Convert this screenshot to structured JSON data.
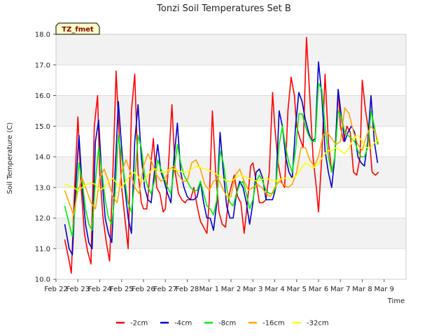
{
  "chart_data": {
    "type": "line",
    "title": "Tonzi Soil Temperatures Set B",
    "xlabel": "Time",
    "ylabel": "Soil Temperature (C)",
    "ylim": [
      10.0,
      18.0
    ],
    "xlim": [
      0,
      16
    ],
    "y_ticks": [
      "10.0",
      "11.0",
      "12.0",
      "13.0",
      "14.0",
      "15.0",
      "16.0",
      "17.0",
      "18.0"
    ],
    "x_ticks": [
      "Feb 22",
      "Feb 23",
      "Feb 24",
      "Feb 25",
      "Feb 26",
      "Feb 27",
      "Feb 28",
      "Mar 1",
      "Mar 2",
      "Mar 3",
      "Mar 4",
      "Mar 5",
      "Mar 6",
      "Mar 7",
      "Mar 8",
      "Mar 9"
    ],
    "site_tag": "TZ_fmet",
    "grid": "horizontal bands",
    "legend_position": "bottom",
    "series": [
      {
        "name": "-2cm",
        "color": "#ff0000",
        "x": [
          0.4,
          0.6,
          0.7,
          0.85,
          1.0,
          1.15,
          1.3,
          1.45,
          1.6,
          1.75,
          1.9,
          2.0,
          2.15,
          2.3,
          2.45,
          2.6,
          2.75,
          2.9,
          3.0,
          3.15,
          3.3,
          3.45,
          3.6,
          3.75,
          3.9,
          4.0,
          4.15,
          4.3,
          4.45,
          4.6,
          4.75,
          4.9,
          5.0,
          5.15,
          5.3,
          5.45,
          5.6,
          5.75,
          5.9,
          6.0,
          6.15,
          6.3,
          6.45,
          6.6,
          6.75,
          6.9,
          7.0,
          7.15,
          7.3,
          7.45,
          7.6,
          7.75,
          7.9,
          8.0,
          8.15,
          8.3,
          8.45,
          8.6,
          8.75,
          8.9,
          9.0,
          9.15,
          9.3,
          9.45,
          9.6,
          9.75,
          9.9,
          10.0,
          10.15,
          10.3,
          10.45,
          10.6,
          10.75,
          10.9,
          11.0,
          11.15,
          11.3,
          11.45,
          11.6,
          11.75,
          11.9,
          12.0,
          12.15,
          12.3,
          12.45,
          12.6,
          12.75,
          12.9,
          13.0,
          13.15,
          13.3,
          13.45,
          13.6,
          13.75,
          13.9,
          14.0,
          14.15,
          14.3,
          14.45,
          14.6,
          14.75
        ],
        "values": [
          11.3,
          10.6,
          10.2,
          13.0,
          15.3,
          13.0,
          11.5,
          10.9,
          10.5,
          15.0,
          16.0,
          13.5,
          12.0,
          11.2,
          10.6,
          13.5,
          16.8,
          14.5,
          13.0,
          12.0,
          11.0,
          15.5,
          16.7,
          13.5,
          12.5,
          12.3,
          12.3,
          13.5,
          14.6,
          13.0,
          12.8,
          12.2,
          12.3,
          13.8,
          15.7,
          13.5,
          12.8,
          12.6,
          12.5,
          12.6,
          12.6,
          13.0,
          12.4,
          11.9,
          11.7,
          11.5,
          12.5,
          15.5,
          13.5,
          12.2,
          11.8,
          11.7,
          12.7,
          13.0,
          13.4,
          12.7,
          12.5,
          11.5,
          12.5,
          13.7,
          13.8,
          13.2,
          12.5,
          12.5,
          12.6,
          13.5,
          16.1,
          15.0,
          13.8,
          13.2,
          13.0,
          15.5,
          16.6,
          16.0,
          15.0,
          14.6,
          14.3,
          17.9,
          16.0,
          14.0,
          13.0,
          12.2,
          14.0,
          16.7,
          14.5,
          13.5,
          14.0,
          16.2,
          15.0,
          14.5,
          15.0,
          14.8,
          13.5,
          13.4,
          14.0,
          16.5,
          15.5,
          14.8,
          13.5,
          13.4,
          13.5
        ]
      },
      {
        "name": "-4cm",
        "color": "#0000cc",
        "x": [
          0.4,
          0.6,
          0.75,
          0.9,
          1.05,
          1.2,
          1.35,
          1.5,
          1.65,
          1.8,
          1.95,
          2.1,
          2.25,
          2.4,
          2.55,
          2.7,
          2.85,
          3.0,
          3.15,
          3.3,
          3.45,
          3.6,
          3.75,
          3.9,
          4.05,
          4.2,
          4.35,
          4.5,
          4.65,
          4.8,
          4.95,
          5.1,
          5.25,
          5.4,
          5.55,
          5.7,
          5.85,
          6.0,
          6.15,
          6.3,
          6.45,
          6.6,
          6.75,
          6.9,
          7.05,
          7.2,
          7.35,
          7.5,
          7.65,
          7.8,
          7.95,
          8.1,
          8.25,
          8.4,
          8.55,
          8.7,
          8.85,
          9.0,
          9.15,
          9.3,
          9.45,
          9.6,
          9.75,
          9.9,
          10.05,
          10.2,
          10.35,
          10.5,
          10.65,
          10.8,
          10.95,
          11.1,
          11.25,
          11.4,
          11.55,
          11.7,
          11.85,
          12.0,
          12.15,
          12.3,
          12.45,
          12.6,
          12.75,
          12.9,
          13.05,
          13.2,
          13.35,
          13.5,
          13.65,
          13.8,
          13.95,
          14.1,
          14.25,
          14.4,
          14.55,
          14.7
        ],
        "values": [
          11.8,
          11.0,
          10.8,
          13.0,
          14.7,
          13.0,
          11.8,
          11.2,
          11.0,
          14.5,
          15.2,
          13.3,
          12.0,
          11.5,
          11.2,
          13.5,
          15.8,
          14.3,
          13.0,
          12.0,
          11.5,
          14.5,
          15.7,
          14.0,
          13.0,
          12.6,
          12.5,
          13.5,
          14.4,
          13.5,
          13.2,
          12.8,
          12.5,
          14.0,
          15.1,
          13.5,
          13.0,
          12.7,
          12.6,
          12.6,
          12.7,
          13.2,
          12.5,
          12.0,
          12.0,
          11.6,
          12.5,
          14.8,
          13.5,
          12.4,
          12.0,
          12.0,
          12.8,
          13.2,
          13.0,
          12.5,
          11.8,
          12.5,
          13.5,
          13.6,
          13.3,
          12.6,
          12.6,
          12.6,
          13.0,
          15.5,
          15.0,
          14.0,
          13.5,
          13.3,
          15.0,
          16.1,
          15.8,
          15.2,
          14.8,
          14.5,
          14.6,
          17.1,
          16.0,
          14.2,
          13.5,
          13.0,
          14.0,
          16.2,
          15.3,
          14.5,
          14.8,
          15.0,
          14.8,
          14.0,
          13.8,
          13.7,
          14.5,
          16.0,
          14.5,
          13.8
        ]
      },
      {
        "name": "-8cm",
        "color": "#00ee00",
        "x": [
          0.4,
          0.6,
          0.75,
          0.9,
          1.05,
          1.2,
          1.35,
          1.5,
          1.65,
          1.8,
          1.95,
          2.1,
          2.25,
          2.4,
          2.55,
          2.7,
          2.85,
          3.0,
          3.15,
          3.3,
          3.45,
          3.6,
          3.75,
          3.9,
          4.05,
          4.2,
          4.35,
          4.5,
          4.65,
          4.8,
          4.95,
          5.1,
          5.25,
          5.4,
          5.55,
          5.7,
          5.85,
          6.0,
          6.15,
          6.3,
          6.45,
          6.6,
          6.75,
          6.9,
          7.05,
          7.2,
          7.35,
          7.5,
          7.65,
          7.8,
          7.95,
          8.1,
          8.25,
          8.4,
          8.55,
          8.7,
          8.85,
          9.0,
          9.15,
          9.3,
          9.45,
          9.6,
          9.75,
          9.9,
          10.05,
          10.2,
          10.35,
          10.5,
          10.65,
          10.8,
          10.95,
          11.1,
          11.25,
          11.4,
          11.55,
          11.7,
          11.85,
          12.0,
          12.15,
          12.3,
          12.45,
          12.6,
          12.75,
          12.9,
          13.05,
          13.2,
          13.35,
          13.5,
          13.65,
          13.8,
          13.95,
          14.1,
          14.25,
          14.4,
          14.55,
          14.7
        ],
        "values": [
          12.4,
          11.8,
          11.4,
          12.5,
          13.8,
          13.2,
          12.3,
          11.8,
          11.6,
          13.2,
          14.3,
          13.5,
          12.6,
          12.0,
          11.8,
          12.8,
          14.7,
          14.0,
          13.2,
          12.5,
          12.2,
          13.2,
          14.7,
          14.3,
          13.4,
          13.0,
          12.8,
          13.2,
          13.9,
          13.6,
          13.3,
          13.0,
          12.8,
          13.6,
          14.4,
          13.8,
          13.4,
          13.2,
          13.0,
          12.9,
          12.9,
          13.2,
          12.8,
          12.4,
          12.3,
          12.1,
          12.6,
          14.2,
          13.8,
          13.0,
          12.5,
          12.4,
          12.8,
          13.1,
          13.2,
          12.8,
          12.3,
          12.6,
          13.2,
          13.4,
          13.2,
          12.9,
          12.8,
          12.8,
          13.0,
          14.4,
          15.0,
          14.3,
          13.8,
          13.5,
          14.2,
          15.4,
          15.4,
          15.0,
          14.7,
          14.5,
          14.5,
          16.4,
          16.2,
          15.0,
          14.0,
          13.5,
          14.0,
          15.5,
          15.3,
          14.8,
          14.7,
          14.6,
          14.5,
          14.2,
          14.0,
          14.0,
          14.3,
          15.5,
          15.0,
          14.4
        ]
      },
      {
        "name": "-16cm",
        "color": "#ffa500",
        "x": [
          0.4,
          0.6,
          0.8,
          1.0,
          1.2,
          1.4,
          1.6,
          1.8,
          2.0,
          2.2,
          2.4,
          2.6,
          2.8,
          3.0,
          3.2,
          3.4,
          3.6,
          3.8,
          4.0,
          4.2,
          4.4,
          4.6,
          4.8,
          5.0,
          5.2,
          5.4,
          5.6,
          5.8,
          6.0,
          6.2,
          6.4,
          6.6,
          6.8,
          7.0,
          7.2,
          7.4,
          7.6,
          7.8,
          8.0,
          8.2,
          8.4,
          8.6,
          8.8,
          9.0,
          9.2,
          9.4,
          9.6,
          9.8,
          10.0,
          10.2,
          10.4,
          10.6,
          10.8,
          11.0,
          11.2,
          11.4,
          11.6,
          11.8,
          12.0,
          12.2,
          12.4,
          12.6,
          12.8,
          13.0,
          13.2,
          13.4,
          13.6,
          13.8,
          14.0,
          14.2,
          14.4,
          14.6,
          14.75
        ],
        "values": [
          12.9,
          12.5,
          12.1,
          12.9,
          13.3,
          12.9,
          12.5,
          12.3,
          13.3,
          13.6,
          13.2,
          12.7,
          12.5,
          13.5,
          13.9,
          13.5,
          13.0,
          12.8,
          13.7,
          14.1,
          13.8,
          13.4,
          13.2,
          13.3,
          13.6,
          13.7,
          13.4,
          13.2,
          13.2,
          13.8,
          13.9,
          13.6,
          13.1,
          12.9,
          13.2,
          13.3,
          13.0,
          12.7,
          12.7,
          13.4,
          13.6,
          13.2,
          12.9,
          13.0,
          13.1,
          13.0,
          12.8,
          12.7,
          13.0,
          13.2,
          13.1,
          13.0,
          13.1,
          13.5,
          14.3,
          14.3,
          13.9,
          13.7,
          14.0,
          14.7,
          14.8,
          14.6,
          14.4,
          14.5,
          15.6,
          15.4,
          14.8,
          14.4,
          14.2,
          14.7,
          15.0,
          14.8,
          14.4
        ]
      },
      {
        "name": "-32cm",
        "color": "#ffff00",
        "x": [
          0.4,
          0.8,
          1.0,
          1.2,
          1.4,
          1.6,
          1.8,
          2.0,
          2.2,
          2.4,
          2.6,
          2.8,
          3.0,
          3.2,
          3.4,
          3.6,
          3.8,
          4.0,
          4.2,
          4.4,
          4.6,
          4.8,
          5.0,
          5.2,
          5.4,
          5.6,
          5.8,
          6.0,
          6.2,
          6.4,
          6.6,
          6.8,
          7.0,
          7.2,
          7.4,
          7.6,
          7.8,
          8.0,
          8.2,
          8.4,
          8.6,
          8.8,
          9.0,
          9.2,
          9.4,
          9.6,
          9.8,
          10.0,
          10.2,
          10.4,
          10.6,
          10.8,
          11.0,
          11.2,
          11.4,
          11.6,
          11.8,
          12.0,
          12.2,
          12.4,
          12.6,
          12.8,
          13.0,
          13.2,
          13.4,
          13.6,
          13.8,
          14.0,
          14.2,
          14.4,
          14.6,
          14.75
        ],
        "values": [
          13.1,
          13.0,
          12.9,
          13.0,
          13.1,
          13.15,
          13.1,
          12.9,
          13.0,
          13.2,
          13.3,
          13.1,
          13.0,
          13.2,
          13.4,
          13.5,
          13.3,
          13.2,
          13.4,
          13.6,
          13.6,
          13.5,
          13.5,
          13.6,
          13.6,
          13.55,
          13.5,
          13.5,
          13.6,
          13.7,
          13.65,
          13.6,
          13.55,
          13.5,
          13.4,
          13.3,
          13.2,
          13.2,
          13.3,
          13.4,
          13.35,
          13.3,
          13.25,
          13.2,
          13.25,
          13.3,
          13.25,
          13.2,
          13.25,
          13.3,
          13.3,
          13.3,
          13.4,
          13.6,
          13.8,
          13.7,
          13.65,
          13.8,
          14.0,
          14.2,
          14.2,
          14.3,
          14.2,
          14.1,
          14.3,
          14.6,
          14.7,
          14.5,
          14.3,
          14.3,
          14.5,
          14.55
        ]
      }
    ]
  }
}
